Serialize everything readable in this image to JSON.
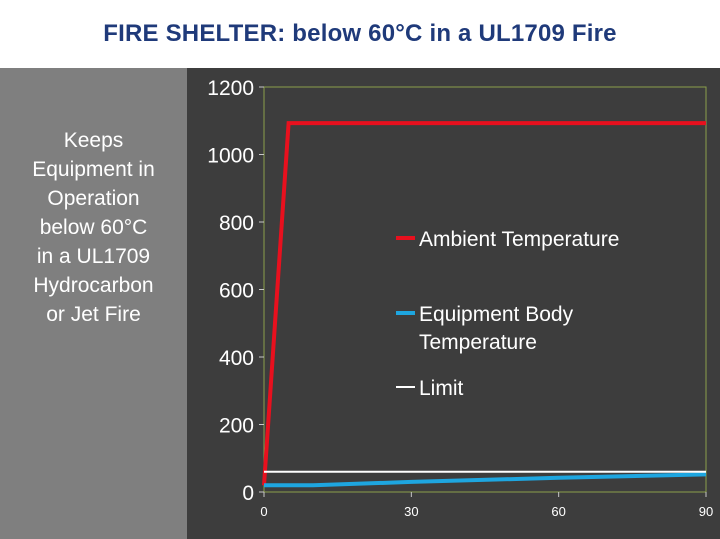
{
  "header": {
    "title": "FIRE SHELTER: below 60°C in a UL1709 Fire"
  },
  "sidebar": {
    "lines": [
      "Keeps",
      "Equipment in",
      "Operation",
      "below 60°C",
      "in a UL1709",
      "Hydrocarbon",
      "or Jet Fire"
    ]
  },
  "colors": {
    "ambient": "#e8101e",
    "equipment": "#1ea6e0",
    "limit": "#ffffff",
    "title": "#1f3a7a",
    "plot_border": "#8aa04a"
  },
  "chart_data": {
    "type": "line",
    "ylim": [
      0,
      1200
    ],
    "xlim": [
      0,
      90
    ],
    "y_ticks": [
      "0",
      "200",
      "400",
      "600",
      "800",
      "1000",
      "1200"
    ],
    "x_ticks": [
      "0",
      "30",
      "60",
      "90"
    ],
    "grid": false,
    "legend_position": "right",
    "series": [
      {
        "name": "Ambient Temperature",
        "color_key": "ambient",
        "x": [
          0,
          5,
          90
        ],
        "y": [
          20,
          1093,
          1093
        ]
      },
      {
        "name": "Equipment Body Temperature",
        "name_lines": [
          "Equipment Body",
          "Temperature"
        ],
        "color_key": "equipment",
        "x": [
          0,
          10,
          30,
          60,
          90
        ],
        "y": [
          20,
          20,
          30,
          42,
          52
        ]
      },
      {
        "name": "Limit",
        "color_key": "limit",
        "x": [
          0,
          90
        ],
        "y": [
          60,
          60
        ]
      }
    ]
  }
}
